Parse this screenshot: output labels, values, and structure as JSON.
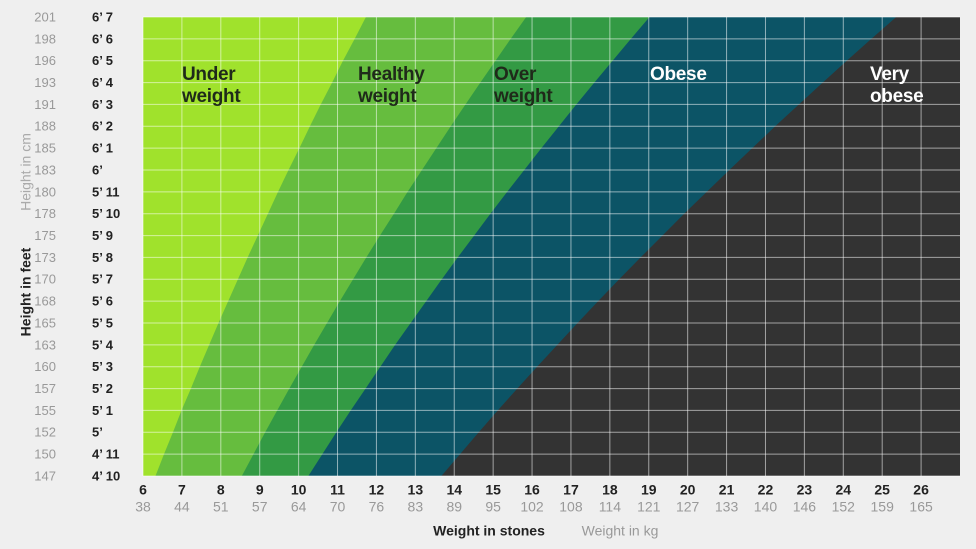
{
  "chart_data": {
    "type": "zones",
    "xlabel": "Weight in stones",
    "xlabel_secondary": "Weight in kg",
    "ylabel": "Height in feet",
    "ylabel_secondary": "Height in cm",
    "xlim": [
      6,
      27
    ],
    "xticks": [
      6,
      7,
      8,
      9,
      10,
      11,
      12,
      13,
      14,
      15,
      16,
      17,
      18,
      19,
      20,
      21,
      22,
      23,
      24,
      25,
      26
    ],
    "xticks_kg": [
      38,
      44,
      51,
      57,
      64,
      70,
      76,
      83,
      89,
      95,
      102,
      108,
      114,
      121,
      127,
      133,
      140,
      146,
      152,
      159,
      165
    ],
    "categories": [
      147,
      150,
      152,
      155,
      157,
      160,
      163,
      165,
      168,
      170,
      173,
      175,
      178,
      180,
      183,
      185,
      188,
      191,
      193,
      196,
      198,
      201
    ],
    "categories_feet": [
      "4’ 10",
      "4’ 11",
      "5’",
      "5’ 1",
      "5’ 2",
      "5’ 3",
      "5’ 4",
      "5’ 5",
      "5’ 6",
      "5’ 7",
      "5’ 8",
      "5’ 9",
      "5’ 10",
      "5’ 11",
      "6’",
      "6’ 1",
      "6’ 2",
      "6’ 3",
      "6’ 4",
      "6’ 5",
      "6’ 6",
      "6’ 7"
    ],
    "grid": true,
    "series": [
      {
        "name": "Under weight",
        "color": "#a0e22c",
        "text_color": "#1f2a1a"
      },
      {
        "name": "Healthy weight",
        "color": "#66bd3e",
        "text_color": "#1f2a1a",
        "values": [
          6.32,
          6.54,
          6.77,
          6.99,
          7.23,
          7.46,
          7.7,
          7.94,
          8.19,
          8.44,
          8.69,
          8.95,
          9.21,
          9.47,
          9.74,
          10.02,
          10.29,
          10.57,
          10.86,
          11.14,
          11.44,
          11.73
        ]
      },
      {
        "name": "Over weight",
        "color": "#339a44",
        "text_color": "#1f2a1a",
        "values": [
          8.54,
          8.84,
          9.14,
          9.45,
          9.76,
          10.08,
          10.4,
          10.73,
          11.06,
          11.4,
          11.74,
          12.09,
          12.45,
          12.8,
          13.17,
          13.54,
          13.91,
          14.29,
          14.67,
          15.06,
          15.45,
          15.85
        ]
      },
      {
        "name": "Obese",
        "color": "#0c5466",
        "text_color": "#ffffff",
        "values": [
          10.25,
          10.61,
          10.97,
          11.34,
          11.72,
          12.1,
          12.48,
          12.88,
          13.28,
          13.68,
          14.09,
          14.51,
          14.93,
          15.36,
          15.8,
          16.24,
          16.69,
          17.14,
          17.6,
          18.07,
          18.54,
          19.02
        ]
      },
      {
        "name": "Very obese",
        "color": "#333333",
        "text_color": "#ffffff",
        "values": [
          13.67,
          14.15,
          14.63,
          15.12,
          15.62,
          16.13,
          16.65,
          17.17,
          17.7,
          18.24,
          18.79,
          19.35,
          19.91,
          20.49,
          21.07,
          21.66,
          22.25,
          22.86,
          23.47,
          24.09,
          24.72,
          25.36
        ]
      }
    ]
  }
}
